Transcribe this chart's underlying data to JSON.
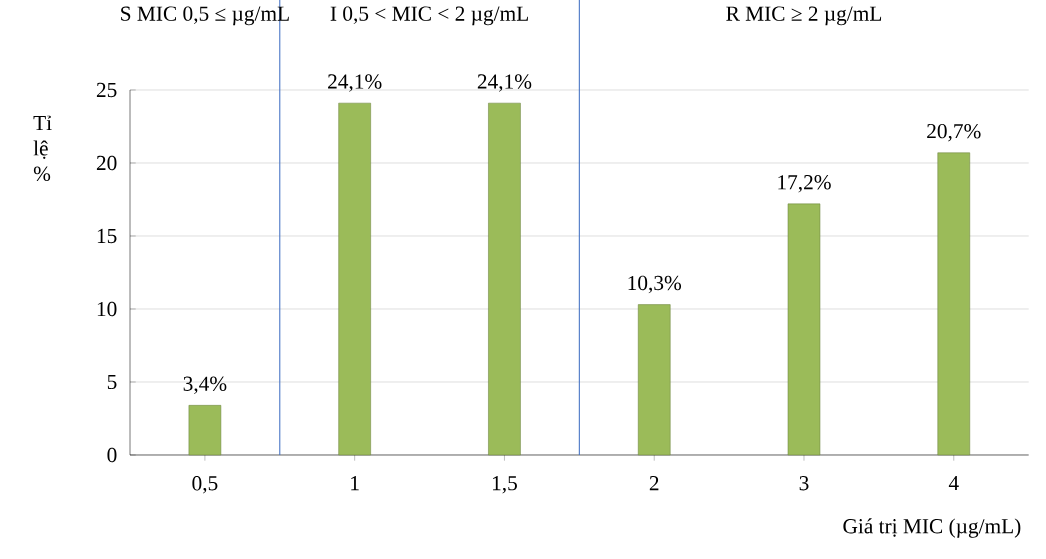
{
  "chart_data": {
    "type": "bar",
    "xlabel": "Giá trị MIC (µg/mL)",
    "ylabel": "Tỉ lệ %",
    "categories": [
      "0,5",
      "1",
      "1,5",
      "2",
      "3",
      "4"
    ],
    "values": [
      3.4,
      24.1,
      24.1,
      10.3,
      17.2,
      20.7
    ],
    "value_labels": [
      "3,4%",
      "24,1%",
      "24,1%",
      "10,3%",
      "17,2%",
      "20,7%"
    ],
    "color": "#9bbb59",
    "ylim": [
      0,
      25
    ],
    "yticks": [
      0,
      5,
      10,
      15,
      20,
      25
    ],
    "grid": "y",
    "annotations": [
      "S  MIC 0,5 ≤ µg/mL",
      "I  0,5 < MIC < 2 µg/mL",
      "R  MIC ≥ 2 µg/mL"
    ]
  }
}
